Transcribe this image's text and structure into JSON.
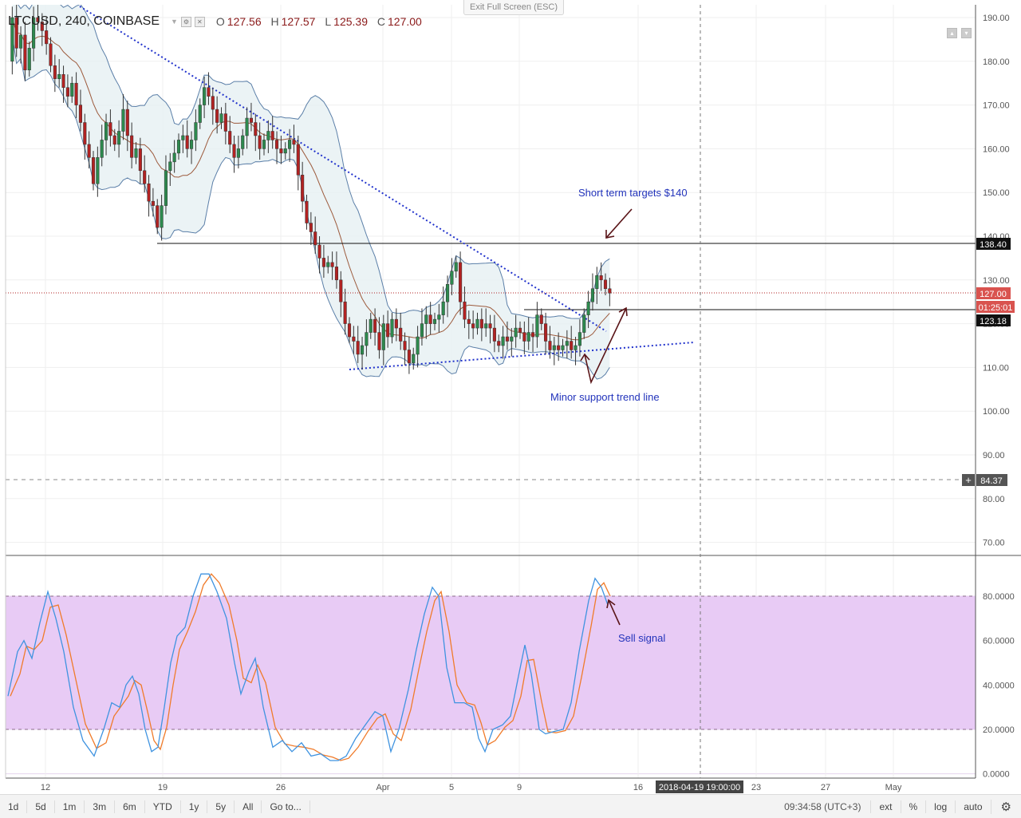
{
  "header": {
    "symbol": "LTCUSD, 240, COINBASE",
    "open_label": "O",
    "open": "127.56",
    "high_label": "H",
    "high": "127.57",
    "low_label": "L",
    "low": "125.39",
    "close_label": "C",
    "close": "127.00"
  },
  "exit_fullscreen_label": "Exit Full Screen (ESC)",
  "price_axis": {
    "ticks": [
      "190.00",
      "180.00",
      "170.00",
      "160.00",
      "150.00",
      "140.00",
      "130.00",
      "120.00",
      "110.00",
      "100.00",
      "90.00",
      "80.00",
      "70.00"
    ],
    "resistance_tag": "138.40",
    "last_price_tag": "127.00",
    "countdown_tag": "01:25:01",
    "support_tag": "123.18",
    "dashed_level_tag": "84.37",
    "plus_icon": "+"
  },
  "stoch_axis": {
    "ticks": [
      "80.0000",
      "60.0000",
      "40.0000",
      "20.0000",
      "0.0000"
    ]
  },
  "time_axis": {
    "labels": [
      "12",
      "19",
      "26",
      "Apr",
      "5",
      "9",
      "16",
      "23",
      "27",
      "May"
    ],
    "crosshair_label": "2018-04-19 19:00:00"
  },
  "annotations": {
    "targets": "Short term targets $140",
    "support_trend": "Minor support trend line",
    "sell": "Sell signal"
  },
  "colors": {
    "bull": "#2d8a4e",
    "bear": "#b22222",
    "band": "#5b7fa8",
    "band_fill": "#e6f0f3",
    "ma": "#9c5a3c",
    "trend": "#2233cc",
    "annotation_text": "#2233bb",
    "arrow": "#5a1518",
    "stoch_fill": "#e8cbf5",
    "k_line": "#3f93e0",
    "d_line": "#f07b2a"
  },
  "toolbar": {
    "timeframes": [
      "1d",
      "5d",
      "1m",
      "3m",
      "6m",
      "YTD",
      "1y",
      "5y",
      "All"
    ],
    "goto": "Go to...",
    "clock": "09:34:58 (UTC+3)",
    "options": [
      "ext",
      "%",
      "log",
      "auto"
    ],
    "settings_icon": "gear-icon"
  },
  "chart_data": {
    "type": "candlestick",
    "symbol": "LTCUSD, 240, COINBASE",
    "timeframe": "240",
    "y_range": [
      65,
      193
    ],
    "indicators": [
      "Bollinger Bands",
      "Stochastic"
    ],
    "key_levels": {
      "resistance": 138.4,
      "last": 127.0,
      "support": 123.18,
      "dashed": 84.37
    },
    "price_path": [
      [
        0,
        180
      ],
      [
        1,
        190
      ],
      [
        2,
        183
      ],
      [
        3,
        186
      ],
      [
        4,
        178
      ],
      [
        5,
        183
      ],
      [
        6,
        190
      ],
      [
        7,
        189
      ],
      [
        8,
        187
      ],
      [
        9,
        184
      ],
      [
        10,
        179
      ],
      [
        11,
        176
      ],
      [
        12,
        177
      ],
      [
        13,
        174
      ],
      [
        14,
        172
      ],
      [
        15,
        175
      ],
      [
        16,
        170
      ],
      [
        17,
        166
      ],
      [
        18,
        161
      ],
      [
        19,
        158
      ],
      [
        20,
        152
      ],
      [
        21,
        158
      ],
      [
        22,
        162
      ],
      [
        23,
        166
      ],
      [
        24,
        163
      ],
      [
        25,
        161
      ],
      [
        26,
        164
      ],
      [
        27,
        169
      ],
      [
        28,
        163
      ],
      [
        29,
        158
      ],
      [
        30,
        160
      ],
      [
        31,
        155
      ],
      [
        32,
        152
      ],
      [
        33,
        148
      ],
      [
        34,
        147
      ],
      [
        35,
        142
      ],
      [
        36,
        147
      ],
      [
        37,
        155
      ],
      [
        38,
        157
      ],
      [
        39,
        159
      ],
      [
        40,
        162
      ],
      [
        41,
        163
      ],
      [
        42,
        160
      ],
      [
        43,
        162
      ],
      [
        44,
        166
      ],
      [
        45,
        170
      ],
      [
        46,
        174
      ],
      [
        47,
        172
      ],
      [
        48,
        169
      ],
      [
        49,
        166
      ],
      [
        50,
        168
      ],
      [
        51,
        164
      ],
      [
        52,
        161
      ],
      [
        53,
        158
      ],
      [
        54,
        160
      ],
      [
        55,
        163
      ],
      [
        56,
        167
      ],
      [
        57,
        166
      ],
      [
        58,
        163
      ],
      [
        59,
        160
      ],
      [
        60,
        162
      ],
      [
        61,
        164
      ],
      [
        62,
        162
      ],
      [
        63,
        160
      ],
      [
        64,
        159
      ],
      [
        65,
        160
      ],
      [
        66,
        162
      ],
      [
        67,
        161
      ],
      [
        68,
        154
      ],
      [
        69,
        148
      ],
      [
        70,
        143
      ],
      [
        71,
        141
      ],
      [
        72,
        138
      ],
      [
        73,
        135
      ],
      [
        74,
        133
      ],
      [
        75,
        134
      ],
      [
        76,
        133
      ],
      [
        77,
        130
      ],
      [
        78,
        125
      ],
      [
        79,
        120
      ],
      [
        80,
        117
      ],
      [
        81,
        116
      ],
      [
        82,
        113
      ],
      [
        83,
        115
      ],
      [
        84,
        118
      ],
      [
        85,
        121
      ],
      [
        86,
        118
      ],
      [
        87,
        114
      ],
      [
        88,
        120
      ],
      [
        89,
        117
      ],
      [
        90,
        121
      ],
      [
        91,
        119
      ],
      [
        92,
        116
      ],
      [
        93,
        114
      ],
      [
        94,
        111
      ],
      [
        95,
        113
      ],
      [
        96,
        117
      ],
      [
        97,
        120
      ],
      [
        98,
        122
      ],
      [
        99,
        120
      ],
      [
        100,
        121
      ],
      [
        101,
        122
      ],
      [
        102,
        125
      ],
      [
        103,
        129
      ],
      [
        104,
        132
      ],
      [
        105,
        134
      ],
      [
        106,
        125
      ],
      [
        107,
        121
      ],
      [
        108,
        120
      ],
      [
        109,
        119
      ],
      [
        110,
        121
      ],
      [
        111,
        119
      ],
      [
        112,
        120
      ],
      [
        113,
        119
      ],
      [
        114,
        116
      ],
      [
        115,
        115
      ],
      [
        116,
        117
      ],
      [
        117,
        116
      ],
      [
        118,
        117
      ],
      [
        119,
        119
      ],
      [
        120,
        118
      ],
      [
        121,
        116
      ],
      [
        122,
        118
      ],
      [
        123,
        117
      ],
      [
        124,
        122
      ],
      [
        125,
        120
      ],
      [
        126,
        116
      ],
      [
        127,
        114
      ],
      [
        128,
        115
      ],
      [
        129,
        114
      ],
      [
        130,
        115
      ],
      [
        131,
        116
      ],
      [
        132,
        114
      ],
      [
        133,
        115
      ],
      [
        134,
        118
      ],
      [
        135,
        122
      ],
      [
        136,
        125
      ],
      [
        137,
        128
      ],
      [
        138,
        131
      ],
      [
        139,
        130
      ],
      [
        140,
        128
      ],
      [
        141,
        127
      ]
    ],
    "stochastic": {
      "upper": 80,
      "lower": 20,
      "y_range": [
        -5,
        92
      ]
    }
  }
}
